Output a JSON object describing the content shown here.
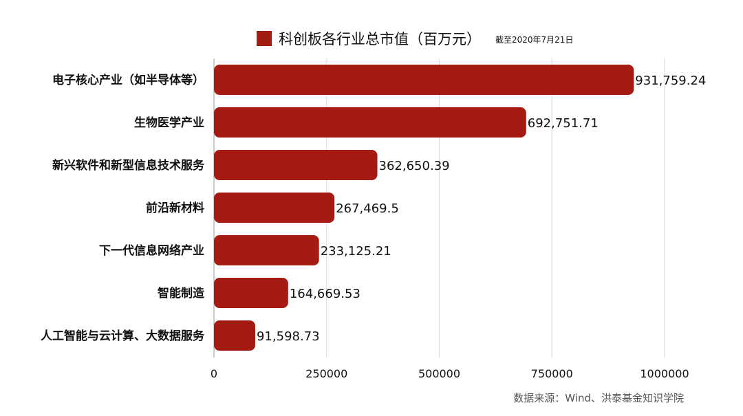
{
  "chart_data": {
    "type": "bar",
    "orientation": "horizontal",
    "title": "科创板各行业总市值（百万元）",
    "subtitle": "截至2020年7月21日",
    "legend": {
      "position": "top-center"
    },
    "categories": [
      "电子核心产业（如半导体等）",
      "生物医学产业",
      "新兴软件和新型信息技术服务",
      "前沿新材料",
      "下一代信息网络产业",
      "智能制造",
      "人工智能与云计算、大数据服务"
    ],
    "series": [
      {
        "name": "科创板各行业总市值（百万元）",
        "color": "#a61a14",
        "values": [
          931759.24,
          692751.71,
          362650.39,
          267469.5,
          233125.21,
          164669.53,
          91598.73
        ]
      }
    ],
    "value_labels": [
      "931,759.24",
      "692,751.71",
      "362,650.39",
      "267,469.5",
      "233,125.21",
      "164,669.53",
      "91,598.73"
    ],
    "xlim": [
      0,
      1000000
    ],
    "xticks": [
      0,
      250000,
      500000,
      750000,
      1000000
    ],
    "xtick_labels": [
      "0",
      "250000",
      "500000",
      "750000",
      "1000000"
    ],
    "grid": {
      "vertical": true,
      "color": "#d9d9d9"
    }
  },
  "source_note": "数据来源：Wind、洪泰基金知识学院"
}
